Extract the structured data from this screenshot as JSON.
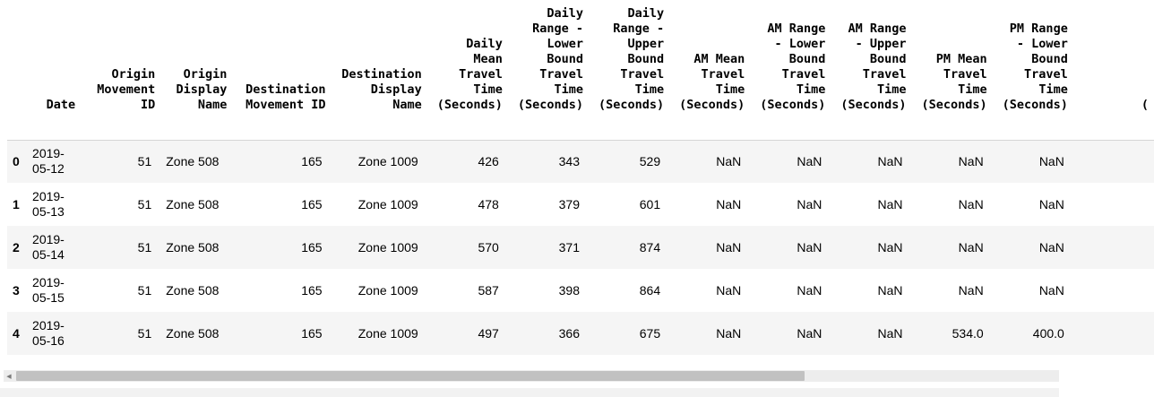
{
  "table": {
    "columns": [
      "",
      "Date",
      "Origin Movement ID",
      "Origin Display Name",
      "Destination Movement ID",
      "Destination Display Name",
      "Daily Mean Travel Time (Seconds)",
      "Daily Range - Lower Bound Travel Time (Seconds)",
      "Daily Range - Upper Bound Travel Time (Seconds)",
      "AM Mean Travel Time (Seconds)",
      "AM Range - Lower Bound Travel Time (Seconds)",
      "AM Range - Upper Bound Travel Time (Seconds)",
      "PM Mean Travel Time (Seconds)",
      "PM Range - Lower Bound Travel Time (Seconds)",
      "("
    ],
    "rows": [
      [
        "0",
        "2019-05-12",
        "51",
        "Zone 508",
        "165",
        "Zone 1009",
        "426",
        "343",
        "529",
        "NaN",
        "NaN",
        "NaN",
        "NaN",
        "NaN",
        ""
      ],
      [
        "1",
        "2019-05-13",
        "51",
        "Zone 508",
        "165",
        "Zone 1009",
        "478",
        "379",
        "601",
        "NaN",
        "NaN",
        "NaN",
        "NaN",
        "NaN",
        ""
      ],
      [
        "2",
        "2019-05-14",
        "51",
        "Zone 508",
        "165",
        "Zone 1009",
        "570",
        "371",
        "874",
        "NaN",
        "NaN",
        "NaN",
        "NaN",
        "NaN",
        ""
      ],
      [
        "3",
        "2019-05-15",
        "51",
        "Zone 508",
        "165",
        "Zone 1009",
        "587",
        "398",
        "864",
        "NaN",
        "NaN",
        "NaN",
        "NaN",
        "NaN",
        ""
      ],
      [
        "4",
        "2019-05-16",
        "51",
        "Zone 508",
        "165",
        "Zone 1009",
        "497",
        "366",
        "675",
        "NaN",
        "NaN",
        "NaN",
        "534.0",
        "400.0",
        ""
      ]
    ]
  },
  "scrollbar": {
    "left_arrow_icon": "triangle-left-icon",
    "position_fraction": 0.0,
    "visible_fraction": 0.75
  },
  "colors": {
    "row_stripe": "#f5f5f5",
    "header_border": "#d6d6d6",
    "scroll_track": "#ededed",
    "scroll_thumb": "#c1c1c1"
  }
}
